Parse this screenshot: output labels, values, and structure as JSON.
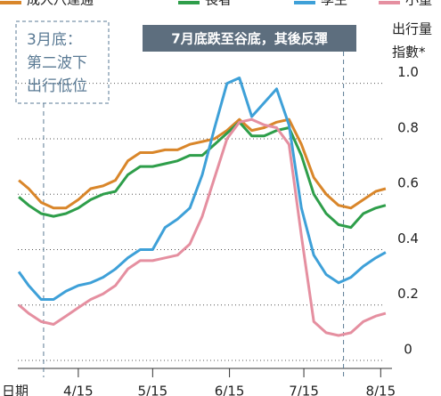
{
  "chart_data": {
    "type": "line",
    "y_label": [
      "出行量",
      "指數*"
    ],
    "x_label": "日期",
    "x": [
      21,
      25,
      30,
      35,
      40,
      45,
      50,
      55,
      60,
      65,
      70,
      75,
      80,
      85,
      90,
      95,
      100,
      105,
      110,
      115,
      120,
      125,
      130,
      135,
      140,
      145,
      150,
      155,
      160,
      165,
      169
    ],
    "xlim": [
      20.6,
      173
    ],
    "xticks": [
      {
        "value": 45,
        "label": "4/15"
      },
      {
        "value": 75,
        "label": "5/15"
      },
      {
        "value": 106,
        "label": "6/15"
      },
      {
        "value": 136,
        "label": "7/15"
      },
      {
        "value": 167,
        "label": "8/15"
      }
    ],
    "ylim": [
      0,
      1.06
    ],
    "yticks": [
      0,
      {
        "value": 0.2,
        "label": "0.2"
      },
      {
        "value": 0.4,
        "label": "0.4"
      },
      {
        "value": 0.6,
        "label": "0.6"
      },
      {
        "value": 0.8,
        "label": "0.8"
      },
      {
        "value": 1.0,
        "label": "1.0"
      }
    ],
    "grid": true,
    "series": [
      {
        "name": "成人八達通",
        "color": "#d9862a",
        "values": [
          0.65,
          0.62,
          0.57,
          0.55,
          0.55,
          0.58,
          0.62,
          0.63,
          0.65,
          0.72,
          0.75,
          0.75,
          0.76,
          0.76,
          0.78,
          0.79,
          0.8,
          0.83,
          0.87,
          0.83,
          0.84,
          0.86,
          0.87,
          0.78,
          0.66,
          0.6,
          0.56,
          0.55,
          0.58,
          0.61,
          0.62
        ]
      },
      {
        "name": "長者",
        "color": "#2e9e4a",
        "values": [
          0.59,
          0.56,
          0.53,
          0.52,
          0.53,
          0.55,
          0.58,
          0.6,
          0.61,
          0.67,
          0.7,
          0.7,
          0.71,
          0.72,
          0.74,
          0.74,
          0.78,
          0.82,
          0.86,
          0.81,
          0.81,
          0.83,
          0.84,
          0.74,
          0.6,
          0.53,
          0.49,
          0.48,
          0.53,
          0.55,
          0.56
        ]
      },
      {
        "name": "學生",
        "color": "#3ea0d8",
        "values": [
          0.32,
          0.27,
          0.22,
          0.22,
          0.25,
          0.27,
          0.28,
          0.3,
          0.33,
          0.37,
          0.4,
          0.4,
          0.48,
          0.51,
          0.55,
          0.67,
          0.84,
          1.0,
          1.02,
          0.88,
          0.93,
          0.98,
          0.85,
          0.55,
          0.38,
          0.31,
          0.28,
          0.3,
          0.34,
          0.37,
          0.39
        ]
      },
      {
        "name": "小童",
        "color": "#e58fa0",
        "values": [
          0.2,
          0.17,
          0.14,
          0.13,
          0.16,
          0.19,
          0.22,
          0.24,
          0.27,
          0.33,
          0.36,
          0.36,
          0.37,
          0.38,
          0.42,
          0.52,
          0.66,
          0.8,
          0.86,
          0.87,
          0.85,
          0.84,
          0.78,
          0.45,
          0.14,
          0.1,
          0.09,
          0.1,
          0.14,
          0.16,
          0.17
        ]
      }
    ],
    "annotations": [
      {
        "x": 31,
        "lines": [
          "3月底：",
          "第二波下",
          "出行低位"
        ]
      },
      {
        "x": 152,
        "lines": [
          "7月底跌至谷底，其後反彈"
        ]
      }
    ]
  }
}
